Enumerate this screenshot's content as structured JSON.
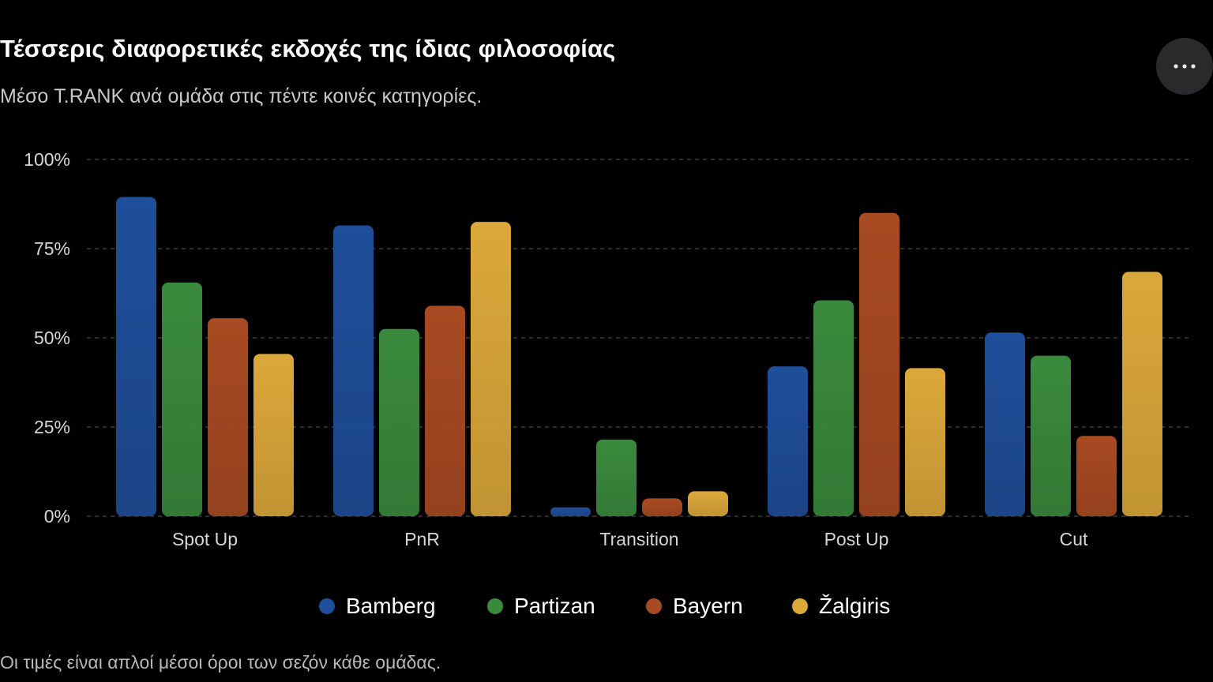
{
  "header": {
    "title": "Τέσσερις διαφορετικές εκδοχές της ίδιας φιλοσοφίας",
    "subtitle": "Μέσο T.RANK ανά ομάδα στις πέντε κοινές κατηγορίες.",
    "more_icon": "more-horizontal-icon"
  },
  "footnote": "Οι τιμές είναι απλοί μέσοι όροι των σεζόν κάθε ομάδας.",
  "chart_data": {
    "type": "bar",
    "title": "Τέσσερις διαφορετικές εκδοχές της ίδιας φιλοσοφίας",
    "subtitle": "Μέσο T.RANK ανά ομάδα στις πέντε κοινές κατηγορίες.",
    "xlabel": "",
    "ylabel": "",
    "categories": [
      "Spot Up",
      "PnR",
      "Transition",
      "Post Up",
      "Cut"
    ],
    "series": [
      {
        "name": "Bamberg",
        "color": "#1f4e9a",
        "values": [
          89.5,
          81.5,
          2.5,
          42,
          51.5
        ]
      },
      {
        "name": "Partizan",
        "color": "#3a8a3d",
        "values": [
          65.5,
          52.5,
          21.5,
          60.5,
          45
        ]
      },
      {
        "name": "Bayern",
        "color": "#a84a22",
        "values": [
          55.5,
          59,
          5,
          85,
          22.5
        ]
      },
      {
        "name": "Žalgiris",
        "color": "#dba83a",
        "values": [
          45.5,
          82.5,
          7,
          41.5,
          68.5
        ]
      }
    ],
    "ylim": [
      0,
      100
    ],
    "yticks": [
      "0%",
      "25%",
      "50%",
      "75%",
      "100%"
    ],
    "ytick_values": [
      0,
      25,
      50,
      75,
      100
    ],
    "grid": true,
    "legend_position": "bottom-center"
  }
}
